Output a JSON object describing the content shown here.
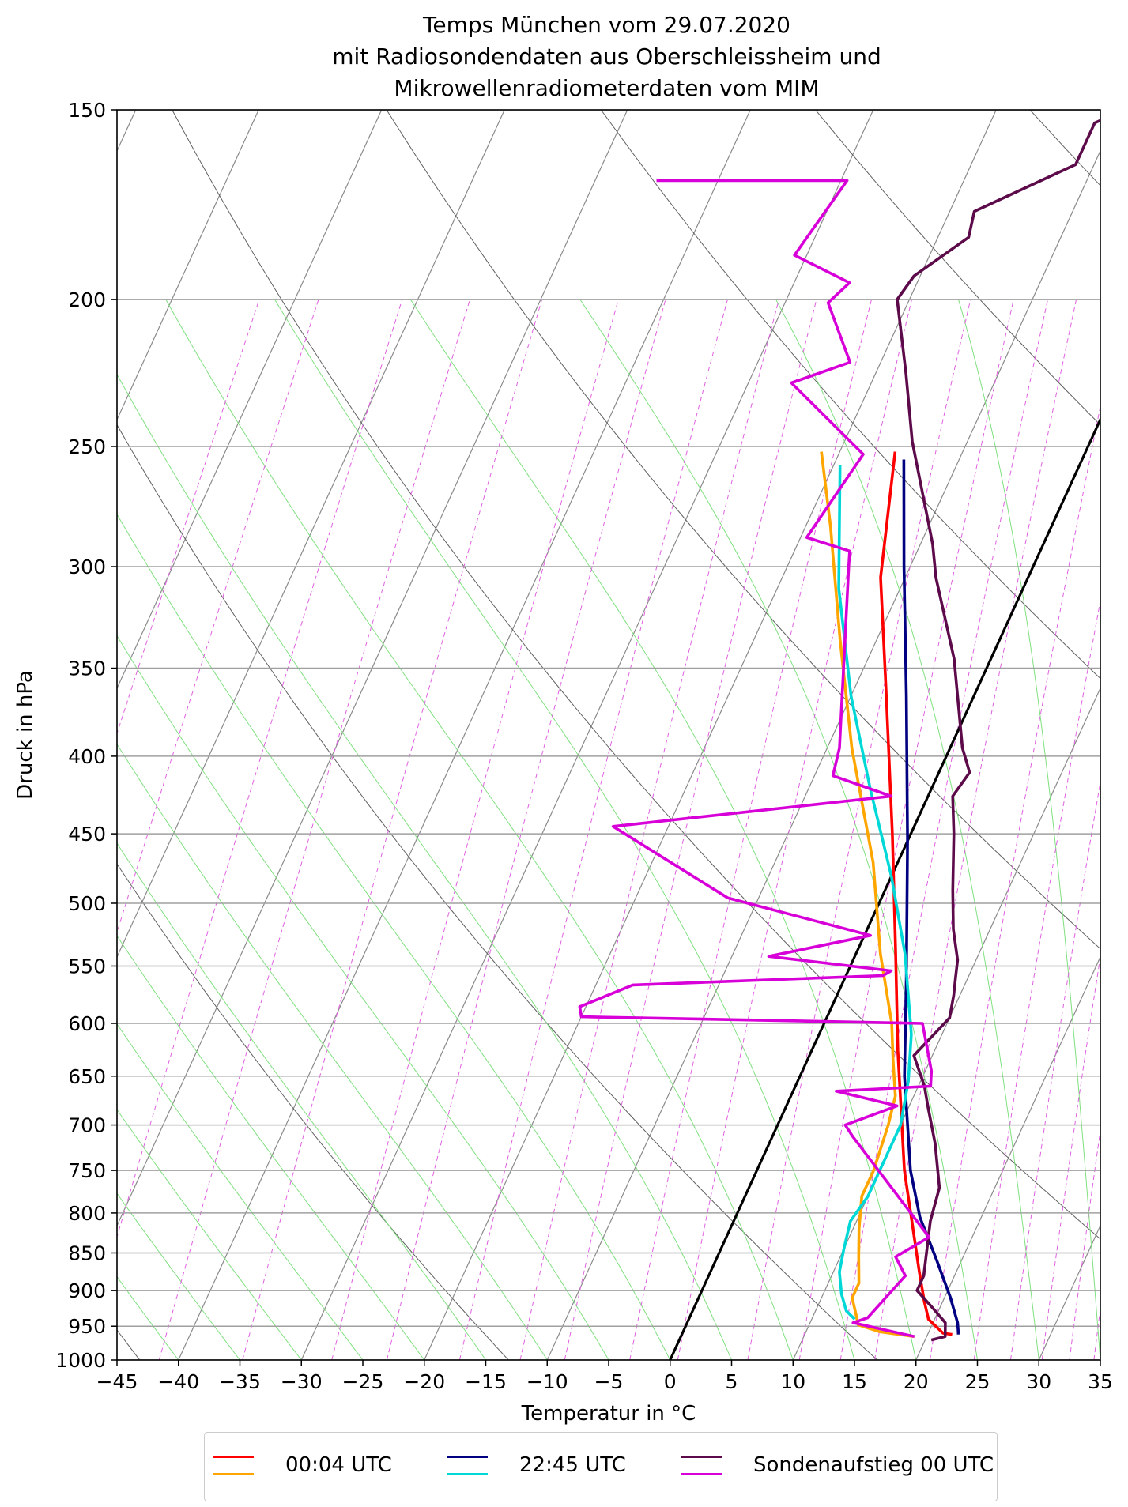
{
  "title_lines": [
    "Temps München vom 29.07.2020",
    "mit Radiosondendaten aus Oberschleissheim und",
    "Mikrowellenradiometerdaten vom MIM"
  ],
  "chart_data": {
    "type": "line",
    "chart_kind": "skew-T log-p diagram",
    "xlabel": "Temperatur in $^\\circ$C",
    "xlabel_display": "Temperatur in °C",
    "ylabel": "Druck in hPa",
    "xlim": [
      -45,
      35
    ],
    "ylim": [
      1000,
      150
    ],
    "y_scale": "log",
    "x_ticks": [
      -45,
      -40,
      -35,
      -30,
      -25,
      -20,
      -15,
      -10,
      -5,
      0,
      5,
      10,
      15,
      20,
      25,
      30,
      35
    ],
    "x_tick_labels": [
      "−45",
      "−40",
      "−35",
      "−30",
      "−25",
      "−20",
      "−15",
      "−10",
      "−5",
      "0",
      "5",
      "10",
      "15",
      "20",
      "25",
      "30",
      "35"
    ],
    "y_ticks": [
      1000,
      950,
      900,
      850,
      800,
      750,
      700,
      650,
      600,
      550,
      500,
      450,
      400,
      350,
      300,
      250,
      200,
      150
    ],
    "y_tick_labels": [
      "1000",
      "950",
      "900",
      "850",
      "800",
      "750",
      "700",
      "650",
      "600",
      "550",
      "500",
      "450",
      "400",
      "350",
      "300",
      "250",
      "200",
      "150"
    ],
    "grid": true,
    "legend_position": "below chart, centered",
    "background_lines": {
      "isotherms": "gray",
      "dry_adiabats": "dark gray",
      "moist_adiabats": "light green",
      "mixing_ratio_lines": "magenta dashed"
    },
    "reference_line": {
      "name": "0 °C isotherm",
      "color": "#000000",
      "points": [
        [
          0,
          1000
        ],
        [
          35,
          240
        ]
      ]
    },
    "series": [
      {
        "name": "00:04 UTC",
        "variable": "temperature",
        "color": "#ff0000",
        "points": [
          [
            22.0,
            962
          ],
          [
            21.2,
            960
          ],
          [
            19.5,
            940
          ],
          [
            18.5,
            915
          ],
          [
            17.0,
            875
          ],
          [
            14.5,
            810
          ],
          [
            12.0,
            750
          ],
          [
            7.0,
            625
          ],
          [
            3.0,
            535
          ],
          [
            -1.5,
            450
          ],
          [
            -7.5,
            360
          ],
          [
            -12.0,
            305
          ],
          [
            -15.5,
            252
          ]
        ]
      },
      {
        "name": "00:04 UTC",
        "variable": "dewpoint",
        "color": "#ffa500",
        "points": [
          [
            19.0,
            965
          ],
          [
            16.0,
            958
          ],
          [
            14.0,
            948
          ],
          [
            13.5,
            935
          ],
          [
            12.5,
            910
          ],
          [
            12.5,
            890
          ],
          [
            11.5,
            855
          ],
          [
            10.5,
            820
          ],
          [
            9.5,
            780
          ],
          [
            9.5,
            750
          ],
          [
            9.0,
            700
          ],
          [
            8.5,
            670
          ],
          [
            7.0,
            635
          ],
          [
            5.5,
            600
          ],
          [
            2.0,
            540
          ],
          [
            -2.0,
            470
          ],
          [
            -8.0,
            395
          ],
          [
            -13.0,
            335
          ],
          [
            -18.0,
            282
          ],
          [
            -21.5,
            252
          ]
        ]
      },
      {
        "name": "22:45 UTC",
        "variable": "temperature",
        "color": "#000080",
        "points": [
          [
            22.5,
            962
          ],
          [
            22.3,
            955
          ],
          [
            22.0,
            945
          ],
          [
            20.5,
            910
          ],
          [
            18.0,
            860
          ],
          [
            15.0,
            805
          ],
          [
            12.5,
            750
          ],
          [
            8.5,
            650
          ],
          [
            5.0,
            560
          ],
          [
            0.0,
            455
          ],
          [
            -5.5,
            365
          ],
          [
            -10.5,
            300
          ],
          [
            -14.5,
            255
          ]
        ]
      },
      {
        "name": "22:45 UTC",
        "variable": "dewpoint",
        "color": "#00d8d8",
        "points": [
          [
            13.5,
            940
          ],
          [
            12.5,
            928
          ],
          [
            11.5,
            905
          ],
          [
            10.5,
            875
          ],
          [
            10.0,
            845
          ],
          [
            9.5,
            810
          ],
          [
            10.0,
            780
          ],
          [
            10.0,
            745
          ],
          [
            10.0,
            700
          ],
          [
            9.0,
            655
          ],
          [
            7.5,
            610
          ],
          [
            4.0,
            540
          ],
          [
            0.0,
            480
          ],
          [
            -5.0,
            420
          ],
          [
            -10.0,
            365
          ],
          [
            -15.0,
            310
          ],
          [
            -19.5,
            257
          ]
        ]
      },
      {
        "name": "Sondenaufstieg 00 UTC",
        "variable": "temperature",
        "color": "#5c0a4a",
        "points": [
          [
            20.5,
            970
          ],
          [
            21.5,
            965
          ],
          [
            21.0,
            945
          ],
          [
            19.5,
            925
          ],
          [
            17.5,
            900
          ],
          [
            17.5,
            880
          ],
          [
            16.0,
            810
          ],
          [
            15.5,
            770
          ],
          [
            13.5,
            720
          ],
          [
            11.5,
            680
          ],
          [
            10.5,
            660
          ],
          [
            8.5,
            630
          ],
          [
            10.0,
            595
          ],
          [
            9.5,
            575
          ],
          [
            9.0,
            560
          ],
          [
            8.5,
            545
          ],
          [
            7.0,
            520
          ],
          [
            5.5,
            490
          ],
          [
            3.5,
            450
          ],
          [
            2.0,
            425
          ],
          [
            2.5,
            410
          ],
          [
            1.0,
            395
          ],
          [
            -3.0,
            345
          ],
          [
            -7.5,
            305
          ],
          [
            -9.0,
            290
          ],
          [
            -14.5,
            248
          ],
          [
            -17.5,
            224
          ],
          [
            -21.0,
            200
          ],
          [
            -20.5,
            193
          ],
          [
            -17.5,
            182
          ],
          [
            -18.0,
            175
          ],
          [
            -11.5,
            163
          ],
          [
            -11.5,
            153
          ],
          [
            -9.5,
            150
          ]
        ]
      },
      {
        "name": "Sondenaufstieg 00 UTC",
        "variable": "dewpoint",
        "color": "#d800d8",
        "points": [
          [
            19.0,
            965
          ],
          [
            13.5,
            945
          ],
          [
            14.5,
            938
          ],
          [
            16.0,
            880
          ],
          [
            14.5,
            855
          ],
          [
            16.5,
            830
          ],
          [
            6.5,
            712
          ],
          [
            5.5,
            700
          ],
          [
            9.0,
            680
          ],
          [
            3.5,
            665
          ],
          [
            11.0,
            660
          ],
          [
            10.5,
            645
          ],
          [
            8.0,
            600
          ],
          [
            -20.0,
            594
          ],
          [
            -20.5,
            585
          ],
          [
            -17.0,
            566
          ],
          [
            3.0,
            558
          ],
          [
            3.5,
            554
          ],
          [
            -7.0,
            542
          ],
          [
            0.5,
            525
          ],
          [
            -12.5,
            496
          ],
          [
            -24.5,
            445
          ],
          [
            -3.0,
            425
          ],
          [
            -8.5,
            412
          ],
          [
            -9.0,
            395
          ],
          [
            -15.0,
            300
          ],
          [
            -15.5,
            293
          ],
          [
            -19.5,
            287
          ],
          [
            -18.0,
            253
          ],
          [
            -26.5,
            227
          ],
          [
            -22.5,
            220
          ],
          [
            -26.5,
            201
          ],
          [
            -25.5,
            195
          ],
          [
            -31.0,
            187
          ],
          [
            -29.5,
            167
          ],
          [
            -45.0,
            167
          ]
        ]
      }
    ]
  },
  "legend": {
    "entries": [
      {
        "label": "00:04 UTC",
        "colors": [
          "#ff0000",
          "#ffa500"
        ]
      },
      {
        "label": "22:45 UTC",
        "colors": [
          "#000080",
          "#00d8d8"
        ]
      },
      {
        "label": "Sondenaufstieg 00 UTC",
        "colors": [
          "#5c0a4a",
          "#d800d8"
        ]
      }
    ]
  }
}
